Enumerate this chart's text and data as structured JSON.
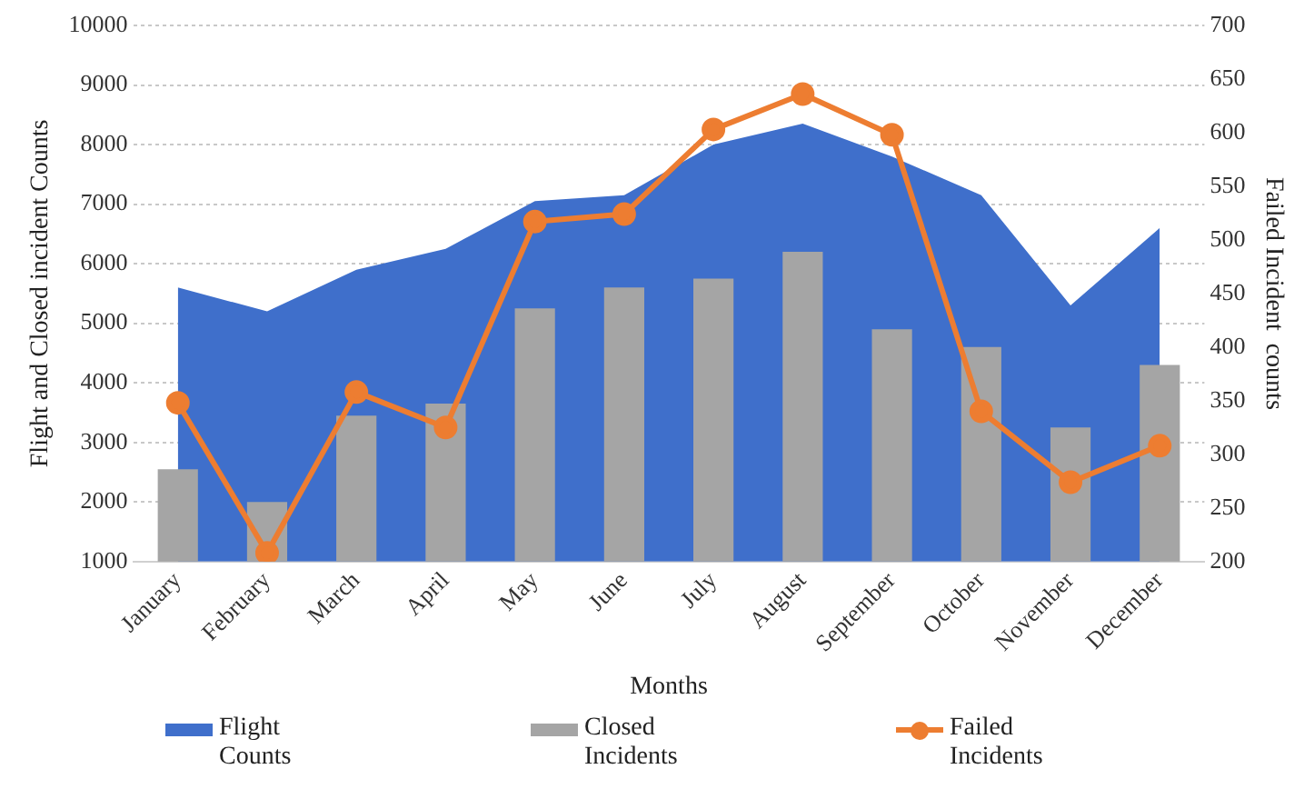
{
  "chart_data": {
    "type": "bar",
    "xlabel": "Months",
    "ylabel": "Flight and Closed incident Counts",
    "y2label": "Failed Incident  counts",
    "categories": [
      "January",
      "February",
      "March",
      "April",
      "May",
      "June",
      "July",
      "August",
      "September",
      "October",
      "November",
      "December"
    ],
    "series": [
      {
        "name": "Flight Counts",
        "type": "area",
        "color": "#3f6fcb",
        "values": [
          5600,
          5200,
          5900,
          6250,
          7050,
          7150,
          8000,
          8350,
          7800,
          7150,
          5300,
          6600
        ]
      },
      {
        "name": "Closed Incidents",
        "color": "#a5a5a5",
        "values": [
          2550,
          2000,
          3450,
          3650,
          5250,
          5600,
          5750,
          6200,
          4900,
          4600,
          3250,
          4300
        ]
      },
      {
        "name": "Failed Incidents",
        "type": "line",
        "axis": "y2",
        "color": "#ed7d31",
        "marker": "circle",
        "values": [
          348,
          208,
          358,
          325,
          517,
          524,
          603,
          636,
          598,
          340,
          274,
          308
        ]
      }
    ],
    "ylim": [
      1000,
      10000
    ],
    "yticks": [
      1000,
      2000,
      3000,
      4000,
      5000,
      6000,
      7000,
      8000,
      9000,
      10000
    ],
    "y2lim": [
      200,
      700
    ],
    "y2ticks": [
      200,
      250,
      300,
      350,
      400,
      450,
      500,
      550,
      600,
      650,
      700
    ],
    "grid": "y",
    "legend": "bottom"
  }
}
